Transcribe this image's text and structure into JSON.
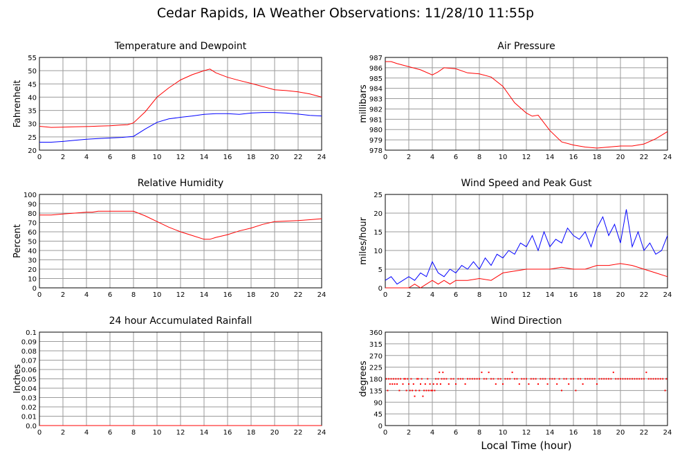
{
  "page": {
    "title": "Cedar Rapids, IA Weather Observations: 11/28/10 11:55p",
    "x_axis_label": "Local Time (hour)"
  },
  "chart_data": [
    {
      "id": "temp",
      "type": "line",
      "title": "Temperature and Dewpoint",
      "ylabel": "Fahrenheit",
      "xlim": [
        0,
        24
      ],
      "ylim": [
        20,
        55
      ],
      "x_ticks": [
        0,
        2,
        4,
        6,
        8,
        10,
        12,
        14,
        16,
        18,
        20,
        22,
        24
      ],
      "y_ticks": [
        20,
        25,
        30,
        35,
        40,
        45,
        50,
        55
      ],
      "grid": true,
      "series": [
        {
          "color": "#ff0000",
          "x": [
            0,
            1,
            2,
            3,
            4,
            5,
            6,
            7,
            7.5,
            8,
            9,
            10,
            11,
            12,
            13,
            14,
            14.5,
            15,
            16,
            17,
            18,
            19,
            20,
            21,
            22,
            23,
            24
          ],
          "y": [
            29,
            28.6,
            28.7,
            28.8,
            28.9,
            29.1,
            29.2,
            29.5,
            29.6,
            30.3,
            34.5,
            40,
            43.5,
            46.5,
            48.5,
            50,
            50.6,
            49.2,
            47.5,
            46.3,
            45.2,
            44,
            42.8,
            42.5,
            42,
            41.2,
            40
          ]
        },
        {
          "color": "#0000ff",
          "x": [
            0,
            1,
            2,
            3,
            4,
            5,
            6,
            7,
            7.5,
            8,
            9,
            10,
            11,
            12,
            13,
            14,
            15,
            16,
            17,
            18,
            19,
            20,
            21,
            22,
            23,
            24
          ],
          "y": [
            23,
            23,
            23.3,
            23.7,
            24.1,
            24.4,
            24.6,
            24.8,
            25,
            25.2,
            28,
            30.5,
            31.8,
            32.4,
            32.9,
            33.5,
            33.8,
            33.8,
            33.5,
            34,
            34.2,
            34.2,
            34,
            33.6,
            33.1,
            32.9
          ]
        }
      ]
    },
    {
      "id": "pressure",
      "type": "line",
      "title": "Air Pressure",
      "ylabel": "millibars",
      "xlim": [
        0,
        24
      ],
      "ylim": [
        978,
        987
      ],
      "x_ticks": [
        0,
        2,
        4,
        6,
        8,
        10,
        12,
        14,
        16,
        18,
        20,
        22,
        24
      ],
      "y_ticks": [
        978,
        979,
        980,
        981,
        982,
        983,
        984,
        985,
        986,
        987
      ],
      "grid": true,
      "series": [
        {
          "color": "#ff0000",
          "x": [
            0,
            0.5,
            1,
            2,
            3,
            4,
            4.5,
            5,
            6,
            7,
            8,
            9,
            10,
            11,
            12,
            12.5,
            13,
            14,
            15,
            16,
            17,
            18,
            19,
            20,
            21,
            22,
            23,
            24
          ],
          "y": [
            986.6,
            986.6,
            986.4,
            986.1,
            985.8,
            985.3,
            985.6,
            986,
            985.9,
            985.5,
            985.4,
            985.1,
            984.2,
            982.6,
            981.6,
            981.3,
            981.4,
            979.9,
            978.8,
            978.5,
            978.3,
            978.2,
            978.3,
            978.4,
            978.4,
            978.6,
            979.1,
            979.8
          ]
        }
      ]
    },
    {
      "id": "humidity",
      "type": "line",
      "title": "Relative Humidity",
      "ylabel": "Percent",
      "xlim": [
        0,
        24
      ],
      "ylim": [
        0,
        100
      ],
      "x_ticks": [
        0,
        2,
        4,
        6,
        8,
        10,
        12,
        14,
        16,
        18,
        20,
        22,
        24
      ],
      "y_ticks": [
        0,
        10,
        20,
        30,
        40,
        50,
        60,
        70,
        80,
        90,
        100
      ],
      "grid": true,
      "series": [
        {
          "color": "#ff0000",
          "x": [
            0,
            1,
            2,
            3,
            4,
            4.5,
            5,
            6,
            7,
            8,
            9,
            10,
            11,
            12,
            13,
            14,
            14.5,
            15,
            16,
            17,
            18,
            19,
            20,
            21,
            22,
            23,
            24
          ],
          "y": [
            78,
            78,
            79,
            80,
            81,
            81,
            82,
            82,
            82,
            82,
            77,
            71,
            65,
            60,
            56,
            52,
            52,
            54,
            57,
            61,
            64,
            68,
            71,
            71.5,
            72,
            73,
            74
          ]
        }
      ]
    },
    {
      "id": "wind",
      "type": "line",
      "title": "Wind Speed and Peak Gust",
      "ylabel": "miles/hour",
      "xlim": [
        0,
        24
      ],
      "ylim": [
        0,
        25
      ],
      "x_ticks": [
        0,
        2,
        4,
        6,
        8,
        10,
        12,
        14,
        16,
        18,
        20,
        22,
        24
      ],
      "y_ticks": [
        0,
        5,
        10,
        15,
        20,
        25
      ],
      "grid": true,
      "series": [
        {
          "color": "#0000ff",
          "x": [
            0,
            0.5,
            1,
            1.5,
            2,
            2.5,
            3,
            3.5,
            4,
            4.5,
            5,
            5.5,
            6,
            6.5,
            7,
            7.5,
            8,
            8.5,
            9,
            9.5,
            10,
            10.5,
            11,
            11.5,
            12,
            12.5,
            13,
            13.5,
            14,
            14.5,
            15,
            15.5,
            16,
            16.5,
            17,
            17.5,
            18,
            18.5,
            19,
            19.5,
            20,
            20.5,
            21,
            21.5,
            22,
            22.5,
            23,
            23.5,
            24
          ],
          "y": [
            2,
            3,
            1,
            2,
            3,
            2,
            4,
            3,
            7,
            4,
            3,
            5,
            4,
            6,
            5,
            7,
            5,
            8,
            6,
            9,
            8,
            10,
            9,
            12,
            11,
            14,
            10,
            15,
            11,
            13,
            12,
            16,
            14,
            13,
            15,
            11,
            16,
            19,
            14,
            17,
            12,
            21,
            11,
            15,
            10,
            12,
            9,
            10,
            14
          ]
        },
        {
          "color": "#ff0000",
          "x": [
            0,
            1,
            2,
            2.5,
            3,
            3.5,
            4,
            4.5,
            5,
            5.5,
            6,
            7,
            8,
            9,
            9.5,
            10,
            11,
            12,
            13,
            14,
            15,
            16,
            17,
            18,
            19,
            20,
            21,
            22,
            23,
            24
          ],
          "y": [
            0,
            0,
            0,
            1,
            0,
            1,
            2,
            1,
            2,
            1,
            2,
            2,
            2.5,
            2,
            3,
            4,
            4.5,
            5,
            5,
            5,
            5.5,
            5,
            5,
            6,
            6,
            6.5,
            6,
            5,
            4,
            3
          ]
        }
      ]
    },
    {
      "id": "rain",
      "type": "line",
      "title": "24 hour Accumulated Rainfall",
      "ylabel": "Inches",
      "xlim": [
        0,
        24
      ],
      "ylim": [
        0,
        0.1
      ],
      "x_ticks": [
        0,
        2,
        4,
        6,
        8,
        10,
        12,
        14,
        16,
        18,
        20,
        22,
        24
      ],
      "y_ticks": [
        0,
        0.01,
        0.02,
        0.03,
        0.04,
        0.05,
        0.06,
        0.07,
        0.08,
        0.09,
        0.1
      ],
      "y_tick_labels": [
        "0.0",
        "0.01",
        "0.02",
        "0.03",
        "0.04",
        "0.05",
        "0.06",
        "0.07",
        "0.08",
        "0.09",
        "0.1"
      ],
      "grid": true,
      "series": [
        {
          "color": "#ff0000",
          "x": [
            0,
            24
          ],
          "y": [
            0,
            0
          ]
        }
      ]
    },
    {
      "id": "winddir",
      "type": "scatter",
      "title": "Wind Direction",
      "ylabel": "degrees",
      "xlim": [
        0,
        24
      ],
      "ylim": [
        0,
        360
      ],
      "x_ticks": [
        0,
        2,
        4,
        6,
        8,
        10,
        12,
        14,
        16,
        18,
        20,
        22,
        24
      ],
      "y_ticks": [
        0,
        45,
        90,
        135,
        180,
        225,
        270,
        315,
        360
      ],
      "grid": true,
      "series": [
        {
          "color": "#ff0000",
          "x": [
            0.1,
            0.2,
            0.3,
            0.4,
            0.5,
            0.6,
            0.7,
            0.8,
            0.9,
            1.0,
            1.1,
            1.2,
            1.3,
            1.5,
            1.6,
            1.7,
            1.8,
            1.9,
            2.0,
            2.1,
            2.2,
            2.3,
            2.4,
            2.5,
            2.6,
            2.7,
            2.8,
            2.9,
            3.0,
            3.1,
            3.2,
            3.3,
            3.4,
            3.5,
            3.6,
            3.7,
            3.8,
            3.9,
            4.0,
            4.1,
            4.2,
            4.3,
            4.4,
            4.5,
            4.6,
            4.7,
            4.8,
            4.9,
            5.0,
            5.2,
            5.4,
            5.6,
            5.8,
            6.0,
            6.2,
            6.4,
            6.6,
            6.8,
            7.0,
            7.2,
            7.4,
            7.6,
            7.8,
            8.0,
            8.2,
            8.4,
            8.6,
            8.8,
            9.0,
            9.2,
            9.4,
            9.6,
            9.8,
            10.0,
            10.2,
            10.4,
            10.6,
            10.8,
            11.0,
            11.2,
            11.4,
            11.6,
            11.8,
            12.0,
            12.2,
            12.4,
            12.6,
            12.8,
            13.0,
            13.2,
            13.4,
            13.6,
            13.8,
            14.0,
            14.2,
            14.4,
            14.6,
            14.8,
            15.0,
            15.2,
            15.4,
            15.6,
            15.8,
            16.0,
            16.2,
            16.4,
            16.6,
            16.8,
            17.0,
            17.2,
            17.4,
            17.6,
            17.8,
            18.0,
            18.2,
            18.4,
            18.6,
            18.8,
            19.0,
            19.2,
            19.4,
            19.6,
            19.8,
            20.0,
            20.2,
            20.4,
            20.6,
            20.8,
            21.0,
            21.2,
            21.4,
            21.6,
            21.8,
            22.0,
            22.2,
            22.4,
            22.6,
            22.8,
            23.0,
            23.2,
            23.4,
            23.6,
            23.8,
            23.9
          ],
          "y": [
            180,
            135,
            180,
            160,
            180,
            160,
            180,
            160,
            180,
            160,
            180,
            135,
            180,
            160,
            180,
            180,
            135,
            180,
            160,
            135,
            180,
            135,
            160,
            113,
            135,
            180,
            180,
            135,
            160,
            180,
            113,
            135,
            160,
            135,
            180,
            135,
            160,
            135,
            135,
            160,
            135,
            180,
            160,
            180,
            205,
            160,
            180,
            205,
            180,
            180,
            160,
            180,
            180,
            160,
            180,
            180,
            180,
            160,
            180,
            180,
            180,
            180,
            180,
            180,
            205,
            180,
            180,
            205,
            180,
            180,
            160,
            180,
            180,
            160,
            180,
            180,
            180,
            205,
            180,
            180,
            160,
            180,
            180,
            180,
            160,
            180,
            180,
            180,
            160,
            180,
            180,
            180,
            160,
            180,
            180,
            180,
            160,
            180,
            135,
            180,
            180,
            160,
            180,
            180,
            135,
            180,
            180,
            160,
            180,
            180,
            180,
            180,
            180,
            160,
            180,
            180,
            180,
            180,
            180,
            180,
            205,
            180,
            180,
            180,
            180,
            180,
            180,
            180,
            180,
            180,
            180,
            180,
            180,
            180,
            205,
            180,
            180,
            180,
            180,
            180,
            180,
            180,
            135,
            180
          ]
        }
      ]
    }
  ]
}
